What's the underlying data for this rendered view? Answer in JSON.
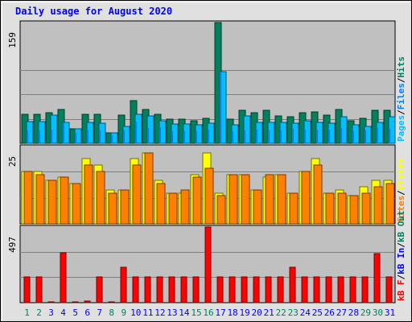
{
  "title": "Daily usage for August 2020",
  "colors": {
    "background": "#e0e0e0",
    "plot_bg": "#c0c0c0",
    "hits": "#00805c",
    "files": "#0080ff",
    "pages": "#00c0ff",
    "visits": "#ffff00",
    "sites": "#ff8000",
    "kb_out": "#00805c",
    "kb_in": "#0000ff",
    "kb_f": "#ff0000",
    "weekday_label": "#0000ff",
    "weekend_label": "#00805c"
  },
  "chart_data": [
    {
      "type": "bar",
      "name": "hits-files-pages",
      "y_max_label": "159",
      "ylim": [
        0,
        159
      ],
      "legend": [
        "Pages",
        "Files",
        "Hits"
      ],
      "legend_seps": [
        "/",
        "/"
      ],
      "x": [
        1,
        2,
        3,
        4,
        5,
        6,
        7,
        8,
        9,
        10,
        11,
        12,
        13,
        14,
        15,
        16,
        17,
        18,
        19,
        20,
        21,
        22,
        23,
        24,
        25,
        26,
        27,
        28,
        29,
        30,
        31
      ],
      "series": [
        {
          "name": "Hits",
          "values": [
            38,
            38,
            40,
            45,
            19,
            38,
            38,
            14,
            37,
            56,
            45,
            38,
            32,
            32,
            30,
            33,
            159,
            32,
            43,
            40,
            43,
            36,
            35,
            40,
            41,
            37,
            44,
            30,
            33,
            43,
            43
          ]
        },
        {
          "name": "Files",
          "values": [
            17,
            17,
            18,
            26,
            14,
            17,
            17,
            11,
            17,
            29,
            20,
            21,
            16,
            16,
            16,
            18,
            94,
            16,
            17,
            18,
            17,
            17,
            19,
            18,
            18,
            18,
            20,
            16,
            17,
            20,
            19
          ]
        },
        {
          "name": "Pages",
          "values": [
            29,
            29,
            37,
            28,
            19,
            28,
            27,
            14,
            22,
            38,
            36,
            30,
            25,
            25,
            24,
            26,
            94,
            24,
            36,
            28,
            28,
            28,
            26,
            30,
            28,
            27,
            35,
            24,
            22,
            28,
            35
          ]
        }
      ]
    },
    {
      "type": "bar",
      "name": "visits-sites",
      "y_max_label": "25",
      "ylim": [
        0,
        25
      ],
      "legend": [
        "Sites",
        "Visits"
      ],
      "legend_seps": [
        "/"
      ],
      "x": [
        1,
        2,
        3,
        4,
        5,
        6,
        7,
        8,
        9,
        10,
        11,
        12,
        13,
        14,
        15,
        16,
        17,
        18,
        19,
        20,
        21,
        22,
        23,
        24,
        25,
        26,
        27,
        28,
        29,
        30,
        31
      ],
      "series": [
        {
          "name": "Visits",
          "values": [
            17,
            17,
            14,
            15,
            13,
            21,
            19,
            11,
            11,
            21,
            23,
            14,
            10,
            10,
            16,
            23,
            10,
            16,
            16,
            11,
            15,
            16,
            10,
            17,
            21,
            10,
            11,
            9,
            12,
            14,
            14
          ]
        },
        {
          "name": "Sites",
          "values": [
            17,
            16,
            14,
            15,
            13,
            19,
            17,
            10,
            11,
            19,
            23,
            13,
            10,
            11,
            15,
            18,
            9,
            16,
            16,
            11,
            16,
            16,
            10,
            17,
            19,
            10,
            10,
            9,
            10,
            12,
            13
          ]
        }
      ]
    },
    {
      "type": "bar",
      "name": "kbytes",
      "y_max_label": "497",
      "ylim": [
        0,
        497
      ],
      "legend": [
        "kB F",
        "kB In",
        "kB Out"
      ],
      "legend_seps": [
        "/",
        "/"
      ],
      "x": [
        1,
        2,
        3,
        4,
        5,
        6,
        7,
        8,
        9,
        10,
        11,
        12,
        13,
        14,
        15,
        16,
        17,
        18,
        19,
        20,
        21,
        22,
        23,
        24,
        25,
        26,
        27,
        28,
        29,
        30,
        31
      ],
      "x_tick_labels": [
        "1",
        "2",
        "3",
        "4",
        "5",
        "6",
        "7",
        "8",
        "9",
        "10",
        "11",
        "12",
        "13",
        "14",
        "15",
        "16",
        "17",
        "18",
        "19",
        "20",
        "21",
        "22",
        "23",
        "24",
        "25",
        "26",
        "27",
        "28",
        "29",
        "30",
        "31"
      ],
      "weekend_days": [
        1,
        2,
        8,
        9,
        15,
        16,
        22,
        23,
        29,
        30
      ],
      "series": [
        {
          "name": "kB F",
          "values": [
            167,
            167,
            5,
            330,
            5,
            10,
            167,
            5,
            232,
            167,
            167,
            167,
            167,
            167,
            167,
            497,
            167,
            167,
            167,
            167,
            167,
            167,
            232,
            167,
            167,
            167,
            167,
            167,
            167,
            322,
            167
          ]
        }
      ]
    }
  ]
}
